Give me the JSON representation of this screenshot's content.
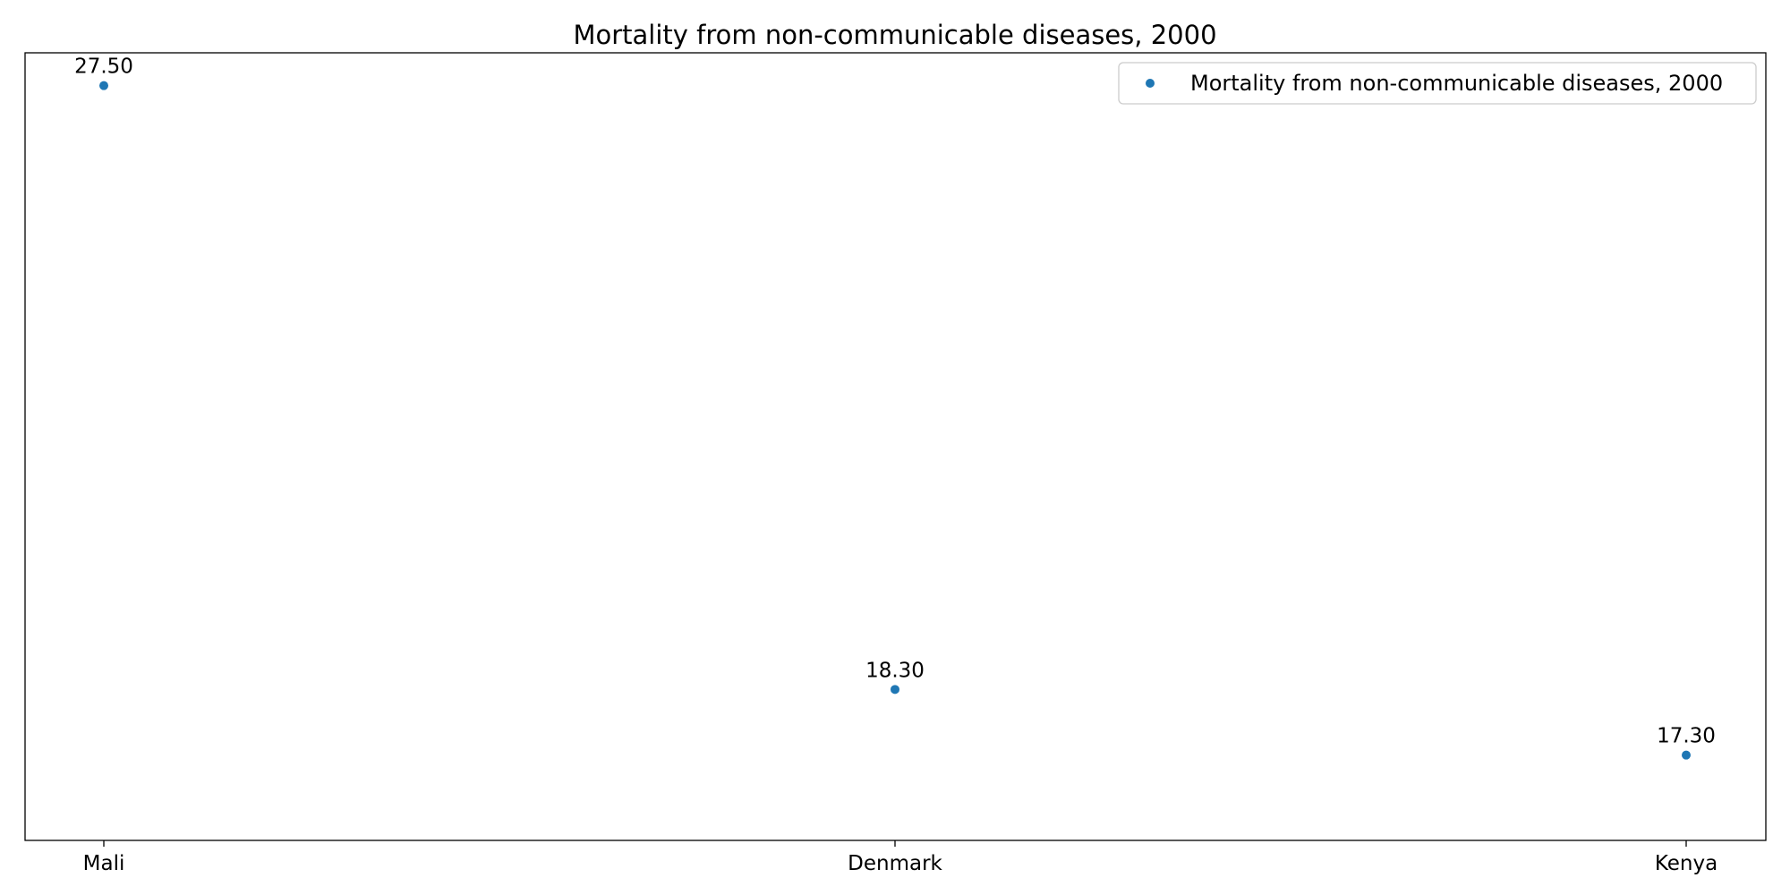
{
  "chart_data": {
    "type": "scatter",
    "title": "Mortality from non-communicable diseases, 2000",
    "categories": [
      "Mali",
      "Denmark",
      "Kenya"
    ],
    "series": [
      {
        "name": "Mortality from non-communicable diseases, 2000",
        "values": [
          27.5,
          18.3,
          17.3
        ],
        "labels": [
          "27.50",
          "18.30",
          "17.30"
        ],
        "color": "#1f77b4"
      }
    ],
    "xlabel": "",
    "ylabel": "",
    "ylim": [
      16.0,
      28.0
    ],
    "grid": false,
    "legend_position": "top-right",
    "y_axis_ticks_shown": false
  }
}
